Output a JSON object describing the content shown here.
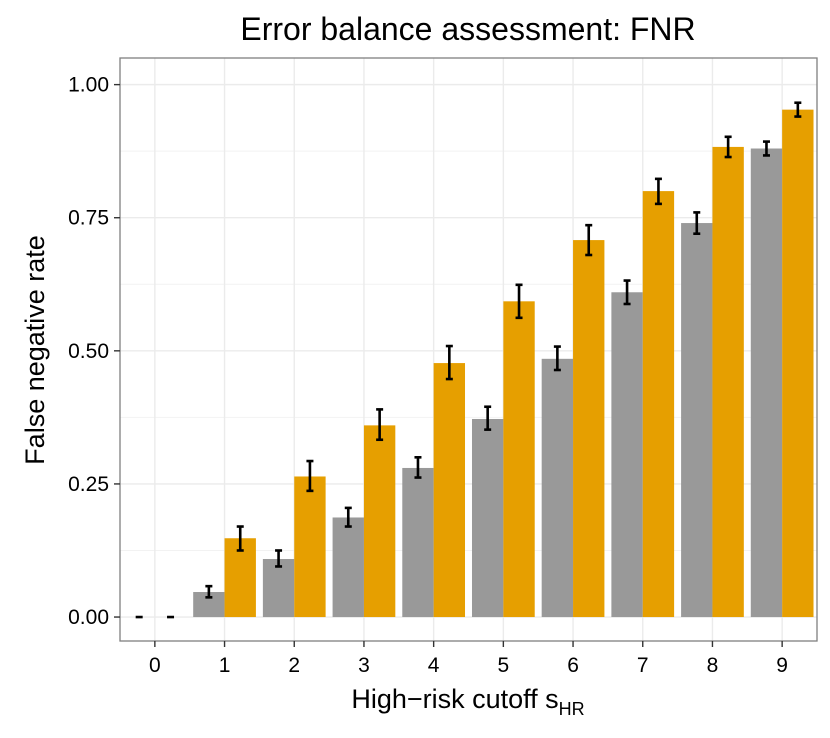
{
  "chart_data": {
    "type": "bar",
    "title": "Error balance assessment: FNR",
    "xlabel": "High−risk cutoff s",
    "xlabel_subscript": "HR",
    "ylabel": "False negative rate",
    "categories": [
      "0",
      "1",
      "2",
      "3",
      "4",
      "5",
      "6",
      "7",
      "8",
      "9"
    ],
    "y_ticks": [
      "0.00",
      "0.25",
      "0.50",
      "0.75",
      "1.00"
    ],
    "ylim": [
      -0.045,
      1.05
    ],
    "grid": true,
    "series": [
      {
        "color": "#999999",
        "values": [
          0.0,
          0.047,
          0.109,
          0.187,
          0.28,
          0.372,
          0.485,
          0.61,
          0.74,
          0.88
        ],
        "err_low": [
          0.0,
          0.037,
          0.095,
          0.17,
          0.262,
          0.352,
          0.464,
          0.588,
          0.72,
          0.867
        ],
        "err_high": [
          0.0,
          0.058,
          0.125,
          0.205,
          0.3,
          0.395,
          0.508,
          0.632,
          0.76,
          0.893
        ]
      },
      {
        "color": "#E69F00",
        "values": [
          0.0,
          0.148,
          0.264,
          0.36,
          0.477,
          0.593,
          0.708,
          0.8,
          0.883,
          0.953
        ],
        "err_low": [
          0.0,
          0.125,
          0.237,
          0.333,
          0.447,
          0.562,
          0.68,
          0.776,
          0.864,
          0.94
        ],
        "err_high": [
          0.0,
          0.17,
          0.293,
          0.39,
          0.509,
          0.624,
          0.736,
          0.823,
          0.902,
          0.966
        ]
      }
    ]
  }
}
